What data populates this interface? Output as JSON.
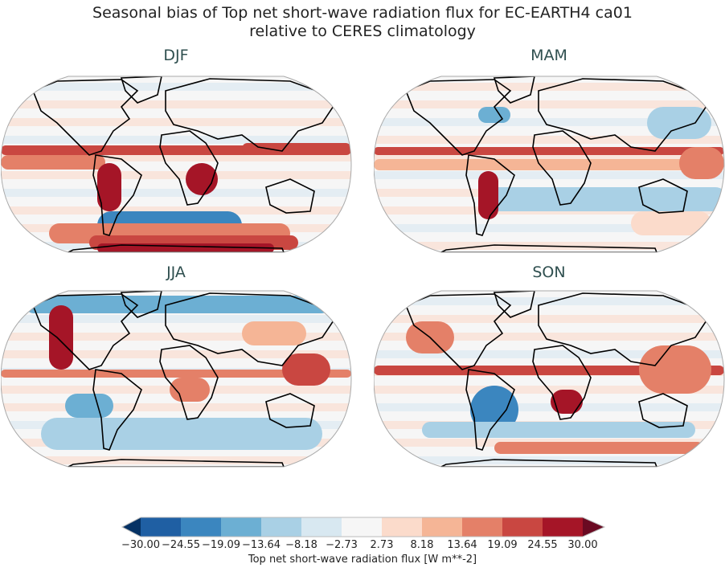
{
  "figure": {
    "title_line1": "Seasonal bias of Top net short-wave radiation flux for EC-EARTH4 ca01",
    "title_line2": "relative to CERES climatology"
  },
  "chart_data": {
    "type": "heatmap",
    "projection": "Robinson",
    "panels": [
      {
        "title": "DJF"
      },
      {
        "title": "MAM"
      },
      {
        "title": "JJA"
      },
      {
        "title": "SON"
      }
    ],
    "colorbar": {
      "label": "Top net short-wave radiation flux [W m**-2]",
      "range": [
        -30.0,
        30.0
      ],
      "extend": "both",
      "ticks": [
        "−30.00",
        "−24.55",
        "−19.09",
        "−13.64",
        "−8.18",
        "−2.73",
        "2.73",
        "8.18",
        "13.64",
        "19.09",
        "24.55",
        "30.00"
      ],
      "colors": [
        "#053061",
        "#2166ac",
        "#4393c3",
        "#92c5de",
        "#d1e5f0",
        "#f7f7f7",
        "#fddbc7",
        "#f4a582",
        "#d6604d",
        "#b2182b",
        "#67001f"
      ],
      "level_colors": [
        "#1f5fa3",
        "#3b86bf",
        "#6cafd3",
        "#a9d0e5",
        "#d8e8f1",
        "#f6f6f6",
        "#fbdbcb",
        "#f5b596",
        "#e48068",
        "#c94741",
        "#a51527"
      ],
      "under_color": "#063264",
      "over_color": "#6a0a22"
    }
  }
}
